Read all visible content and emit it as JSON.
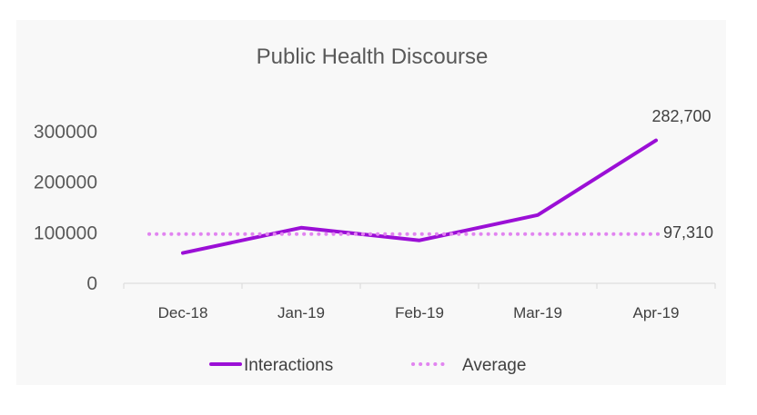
{
  "chart_data": {
    "type": "line",
    "title": "Public Health Discourse",
    "categories": [
      "Dec-18",
      "Jan-19",
      "Feb-19",
      "Mar-19",
      "Apr-19"
    ],
    "series": [
      {
        "name": "Interactions",
        "values": [
          60000,
          110000,
          85000,
          135000,
          282700
        ],
        "color": "#9b0fd6",
        "style": "solid"
      },
      {
        "name": "Average",
        "values": [
          97310,
          97310,
          97310,
          97310,
          97310
        ],
        "color": "#e184f0",
        "style": "dotted"
      }
    ],
    "y_ticks": [
      "0",
      "100000",
      "200000",
      "300000"
    ],
    "ylim": [
      0,
      300000
    ],
    "data_labels": {
      "last_interactions": "282,700",
      "average": "97,310"
    },
    "legend": {
      "position": "bottom",
      "entries": [
        "Interactions",
        "Average"
      ]
    },
    "grid": false
  }
}
